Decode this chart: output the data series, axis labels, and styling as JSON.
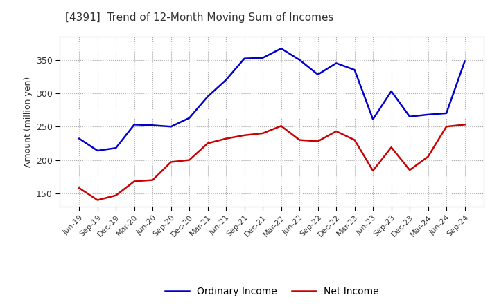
{
  "title": "[4391]  Trend of 12-Month Moving Sum of Incomes",
  "ylabel": "Amount (million yen)",
  "x_labels": [
    "Jun-19",
    "Sep-19",
    "Dec-19",
    "Mar-20",
    "Jun-20",
    "Sep-20",
    "Dec-20",
    "Mar-21",
    "Jun-21",
    "Sep-21",
    "Dec-21",
    "Mar-22",
    "Jun-22",
    "Sep-22",
    "Dec-22",
    "Mar-23",
    "Jun-23",
    "Sep-23",
    "Dec-23",
    "Mar-24",
    "Jun-24",
    "Sep-24"
  ],
  "ordinary_income": [
    232,
    214,
    218,
    253,
    252,
    250,
    263,
    295,
    320,
    352,
    353,
    367,
    350,
    328,
    345,
    335,
    261,
    303,
    265,
    268,
    270,
    348
  ],
  "net_income": [
    158,
    140,
    147,
    168,
    170,
    197,
    200,
    225,
    232,
    237,
    240,
    251,
    230,
    228,
    243,
    230,
    184,
    219,
    185,
    205,
    250,
    253
  ],
  "ordinary_color": "#0000cc",
  "net_color": "#cc0000",
  "ylim": [
    130,
    385
  ],
  "yticks": [
    150,
    200,
    250,
    300,
    350
  ],
  "background_color": "#ffffff",
  "grid_color": "#aaaaaa",
  "title_color": "#333333",
  "legend_ordinary": "Ordinary Income",
  "legend_net": "Net Income"
}
